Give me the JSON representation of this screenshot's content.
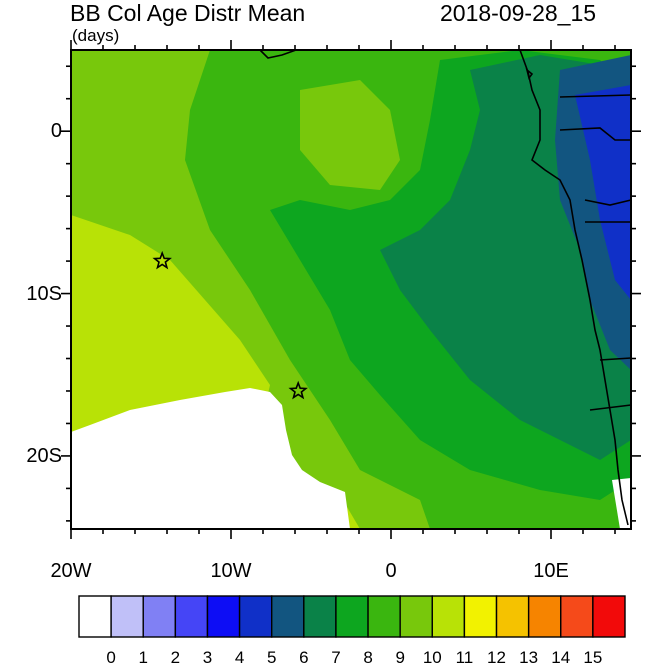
{
  "title": "BB Col Age Distr Mean",
  "subtitle": "(days)",
  "timestamp": "2018-09-28_15",
  "axes": {
    "lon_labels": [
      {
        "text": "20W",
        "lon": -20
      },
      {
        "text": "10W",
        "lon": -10
      },
      {
        "text": "0",
        "lon": 0
      },
      {
        "text": "10E",
        "lon": 10
      }
    ],
    "lat_labels": [
      {
        "text": "0",
        "lat": 0
      },
      {
        "text": "10S",
        "lat": -10
      },
      {
        "text": "20S",
        "lat": -20
      }
    ],
    "lon_range": [
      -20,
      15
    ],
    "lat_range": [
      -24.5,
      5
    ]
  },
  "colorbar": {
    "labels": [
      "0",
      "1",
      "2",
      "3",
      "4",
      "5",
      "6",
      "7",
      "8",
      "9",
      "10",
      "11",
      "12",
      "13",
      "14",
      "15"
    ],
    "colors": [
      "#ffffff",
      "#c0c0f8",
      "#8080f4",
      "#4545f6",
      "#0d0df5",
      "#1030c8",
      "#125580",
      "#0a8248",
      "#0da61f",
      "#3ab60f",
      "#78c80c",
      "#b8e206",
      "#f2f200",
      "#f5c200",
      "#f68400",
      "#f54a1a",
      "#f20a0a"
    ]
  },
  "markers": [
    {
      "name": "station-star-1",
      "lon": -14.3,
      "lat": -8.0
    },
    {
      "name": "station-star-2",
      "lon": -5.8,
      "lat": -16.0
    }
  ]
}
